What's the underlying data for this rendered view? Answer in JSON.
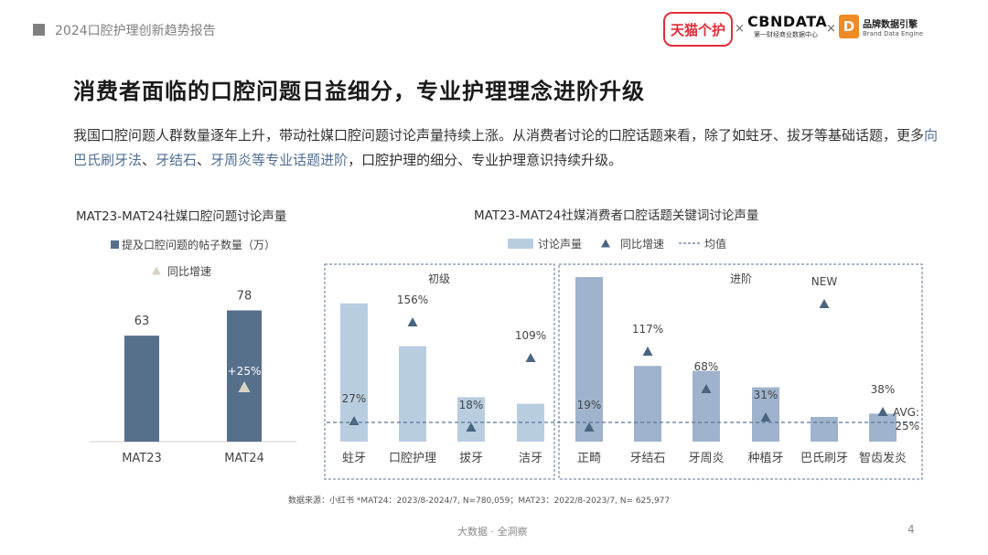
{
  "header": {
    "report_title": "2024口腔护理创新趋势报告",
    "logos": {
      "tmall": "天猫个护",
      "cbndata": "CBNDATA",
      "cbndata_sub": "第一财经商业数据中心",
      "engine": "品牌数据引擎",
      "engine_sub": "Brand Data Engine",
      "sep": "×"
    }
  },
  "heading": "消费者面临的口腔问题日益细分，专业护理理念进阶升级",
  "paragraph": {
    "p1": "我国口腔问题人群数量逐年上升，带动社媒口腔问题讨论声量持续上涨。从消费者讨论的口腔话题来看，除了如蛀牙、拔牙等基础话题，更多",
    "h1": "向巴氏刷牙法",
    "s1": "、",
    "h2": "牙结石",
    "s2": "、",
    "h3": "牙周炎等专业话题进阶",
    "p2": "，口腔护理的细分、专业护理意识持续升级。"
  },
  "colors": {
    "dark_bar": "#566f8a",
    "light_bar": "#b9cde0",
    "adv_bar": "#9fb3cc",
    "triangle_left": "#d9d4c2",
    "triangle": "#4a6580",
    "box": "#5c7693"
  },
  "chart_data": [
    {
      "type": "bar",
      "title": "MAT23-MAT24社媒口腔问题讨论声量",
      "legend": {
        "bar": "提及口腔问题的帖子数量（万）",
        "growth": "同比增速"
      },
      "categories": [
        "MAT23",
        "MAT24"
      ],
      "values": [
        63,
        78
      ],
      "value_labels": [
        "63",
        "78"
      ],
      "growth_label": "+25%",
      "growth": 25,
      "ylim": [
        0,
        100
      ]
    },
    {
      "type": "bar",
      "title": "MAT23-MAT24社媒消费者口腔话题关键词讨论声量",
      "legend": {
        "bar": "讨论声量",
        "growth": "同比增速",
        "avg": "均值"
      },
      "groups": [
        {
          "name": "初级",
          "categories": [
            "蛀牙",
            "口腔护理",
            "拔牙",
            "洁牙"
          ]
        },
        {
          "name": "进阶",
          "categories": [
            "正畸",
            "牙结石",
            "牙周炎",
            "种植牙",
            "巴氏刷牙",
            "智齿发炎"
          ]
        }
      ],
      "volume_relative": [
        0.84,
        0.58,
        0.27,
        0.23,
        1.0,
        0.46,
        0.43,
        0.33,
        0.15,
        0.17
      ],
      "growth": [
        27,
        156,
        18,
        109,
        19,
        117,
        68,
        31,
        null,
        38
      ],
      "growth_labels": [
        "27%",
        "156%",
        "18%",
        "109%",
        "19%",
        "117%",
        "68%",
        "31%",
        "NEW",
        "38%"
      ],
      "average": {
        "label": "AVG:",
        "value": "25%"
      }
    }
  ],
  "source": "数据来源：小红书   *MAT24：2023/8-2024/7, N=780,059；MAT23：2022/8-2023/7, N= 625,977",
  "footer": "大数据 · 全洞察",
  "page_number": "4"
}
